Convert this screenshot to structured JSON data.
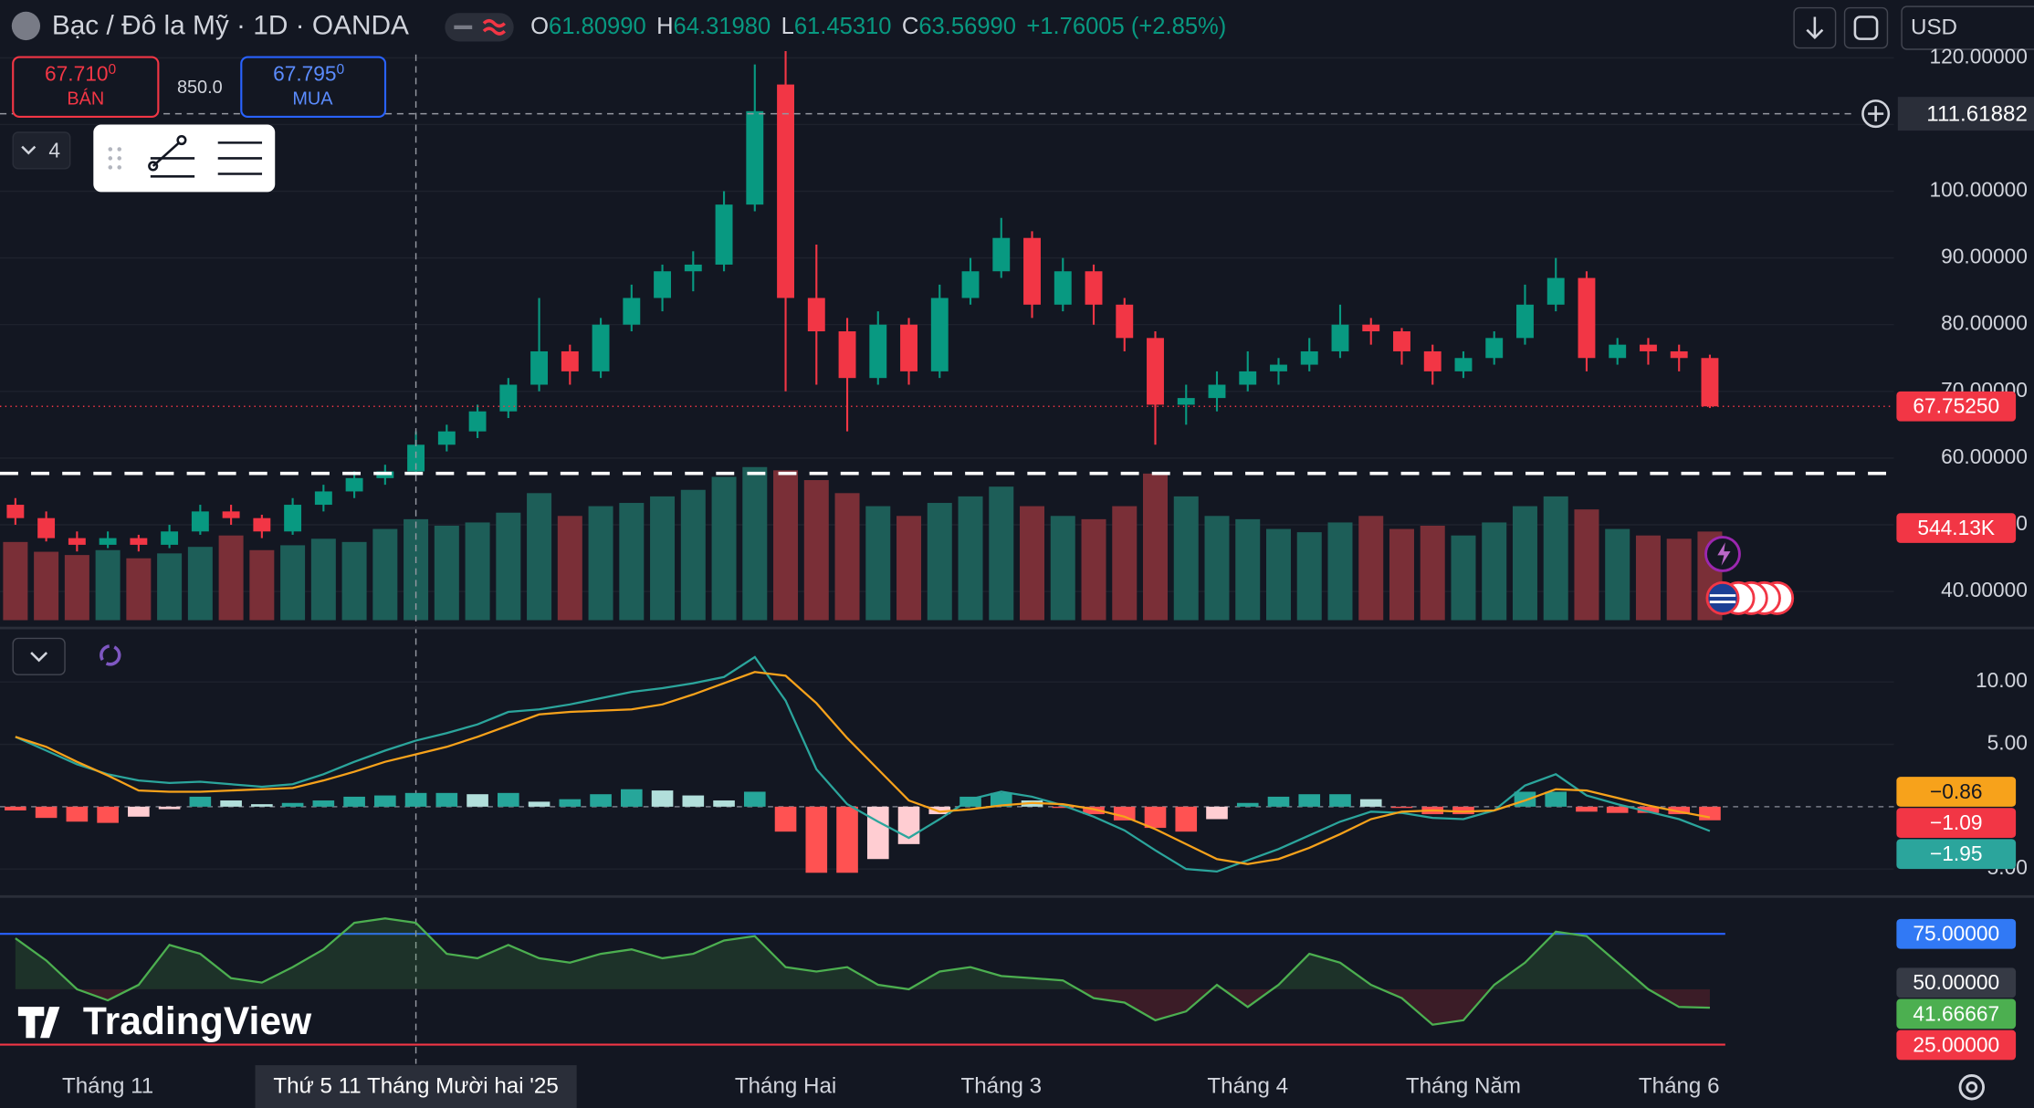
{
  "header": {
    "symbol": "Bạc / Đô la Mỹ · 1D · OANDA",
    "ohlc": [
      {
        "label": "O",
        "value": "61.80990"
      },
      {
        "label": "H",
        "value": "64.31980"
      },
      {
        "label": "L",
        "value": "61.45310"
      },
      {
        "label": "C",
        "value": "63.56990"
      }
    ],
    "change": "+1.76005 (+2.85%)"
  },
  "trade": {
    "sell": {
      "price": "67.710",
      "last_digit": "0",
      "label": "BÁN"
    },
    "spread": "850.0",
    "buy": {
      "price": "67.795",
      "last_digit": "0",
      "label": "MUA"
    }
  },
  "toolbar": {
    "layers": "4"
  },
  "currency": "USD",
  "watermark": "TradingView",
  "chart_data": [
    {
      "type": "candlestick",
      "up_color": "#089981",
      "down_color": "#f23645",
      "volume_up_color": "#1d5e58",
      "volume_down_color": "#7a2f37",
      "categories": [
        null,
        null,
        null,
        "Tháng 11",
        null,
        null,
        null,
        null,
        null,
        null,
        null,
        null,
        null,
        "Thứ 5 11 Tháng Mười hai '25",
        null,
        null,
        null,
        null,
        null,
        null,
        null,
        null,
        null,
        null,
        null,
        "Tháng Hai",
        null,
        null,
        null,
        null,
        null,
        null,
        "Tháng 3",
        null,
        null,
        null,
        null,
        null,
        null,
        null,
        "Tháng 4",
        null,
        null,
        null,
        null,
        null,
        null,
        "Tháng Năm",
        null,
        null,
        null,
        null,
        null,
        null,
        "Tháng 6",
        null
      ],
      "ohlc": [
        [
          53,
          54,
          50,
          51
        ],
        [
          51,
          52,
          47.5,
          48
        ],
        [
          48,
          49,
          46,
          47
        ],
        [
          47,
          49,
          46.5,
          48
        ],
        [
          48,
          48.5,
          46,
          47
        ],
        [
          47,
          50,
          46.5,
          49
        ],
        [
          49,
          53,
          48.5,
          52
        ],
        [
          52,
          53,
          50,
          51
        ],
        [
          51,
          51.5,
          48,
          49
        ],
        [
          49,
          54,
          48.5,
          53
        ],
        [
          53,
          56,
          52,
          55
        ],
        [
          55,
          58,
          54,
          57
        ],
        [
          57,
          59,
          56,
          58
        ],
        [
          58,
          64,
          57.5,
          62
        ],
        [
          62,
          65,
          61,
          64
        ],
        [
          64,
          68,
          63,
          67
        ],
        [
          67,
          72,
          66,
          71
        ],
        [
          71,
          84,
          70,
          76
        ],
        [
          76,
          77,
          71,
          73
        ],
        [
          73,
          81,
          72,
          80
        ],
        [
          80,
          86,
          79,
          84
        ],
        [
          84,
          89,
          82,
          88
        ],
        [
          88,
          91,
          85,
          89
        ],
        [
          89,
          100,
          88,
          98
        ],
        [
          98,
          119,
          97,
          112
        ],
        [
          116,
          121,
          70,
          84
        ],
        [
          84,
          92,
          71,
          79
        ],
        [
          79,
          81,
          64,
          72
        ],
        [
          72,
          82,
          71,
          80
        ],
        [
          80,
          81,
          71,
          73
        ],
        [
          73,
          86,
          72,
          84
        ],
        [
          84,
          90,
          83,
          88
        ],
        [
          88,
          96,
          87,
          93
        ],
        [
          93,
          94,
          81,
          83
        ],
        [
          83,
          90,
          82,
          88
        ],
        [
          88,
          89,
          80,
          83
        ],
        [
          83,
          84,
          76,
          78
        ],
        [
          78,
          79,
          62,
          68
        ],
        [
          68,
          71,
          65,
          69
        ],
        [
          69,
          73,
          67,
          71
        ],
        [
          71,
          76,
          70,
          73
        ],
        [
          73,
          75,
          71,
          74
        ],
        [
          74,
          78,
          73,
          76
        ],
        [
          76,
          83,
          75,
          80
        ],
        [
          80,
          81,
          77,
          79
        ],
        [
          79,
          79.5,
          74,
          76
        ],
        [
          76,
          77,
          71,
          73
        ],
        [
          73,
          76,
          72,
          75
        ],
        [
          75,
          79,
          74,
          78
        ],
        [
          78,
          86,
          77,
          83
        ],
        [
          83,
          90,
          82,
          87
        ],
        [
          87,
          88,
          73,
          75
        ],
        [
          75,
          78,
          74,
          77
        ],
        [
          77,
          78,
          74,
          76
        ],
        [
          76,
          77,
          73,
          75
        ],
        [
          75,
          75.5,
          67.5,
          67.7525
        ]
      ],
      "volume": [
        480,
        420,
        400,
        430,
        380,
        410,
        450,
        520,
        430,
        460,
        500,
        480,
        560,
        620,
        580,
        600,
        660,
        780,
        640,
        700,
        720,
        760,
        800,
        880,
        940,
        920,
        860,
        780,
        700,
        640,
        720,
        760,
        820,
        700,
        640,
        620,
        700,
        900,
        760,
        640,
        620,
        560,
        540,
        600,
        640,
        560,
        580,
        520,
        600,
        700,
        760,
        680,
        560,
        520,
        500,
        544.13
      ],
      "volume_last_label": "544.13K",
      "ylim": [
        35.7,
        120.5
      ],
      "yticks": [
        {
          "value": 40,
          "label": "40.00000"
        },
        {
          "value": 50,
          "label": "50.00000"
        },
        {
          "value": 60,
          "label": "60.00000"
        },
        {
          "value": 70,
          "label": "70.00000"
        },
        {
          "value": 80,
          "label": "80.00000"
        },
        {
          "value": 90,
          "label": "90.00000"
        },
        {
          "value": 100,
          "label": "100.00000"
        },
        {
          "value": 110,
          "label": "110.00000"
        },
        {
          "value": 120,
          "label": "120.00000"
        }
      ],
      "grid": true,
      "current_price": {
        "value": 67.7525,
        "label": "67.75250"
      },
      "hline": 57.7,
      "crosshair": {
        "x": 13,
        "y": {
          "value": 111.61882,
          "label": "111.61882"
        }
      }
    },
    {
      "type": "line",
      "ylim": [
        -7.1,
        13.5
      ],
      "yticks": [
        {
          "value": -5,
          "label": "−5.00"
        },
        {
          "value": 5,
          "label": "5.00"
        },
        {
          "value": 10,
          "label": "10.00"
        }
      ],
      "zero_line": true,
      "series": [
        {
          "color": "#2ba59c",
          "values": [
            5.6,
            4.5,
            3.4,
            2.6,
            2.1,
            1.9,
            2.0,
            1.8,
            1.6,
            1.8,
            2.6,
            3.6,
            4.5,
            5.3,
            5.9,
            6.6,
            7.6,
            7.8,
            8.2,
            8.7,
            9.2,
            9.5,
            9.9,
            10.4,
            12.0,
            8.5,
            3.0,
            0.2,
            -1.2,
            -2.5,
            -1.0,
            0.6,
            1.2,
            0.8,
            0.1,
            -0.8,
            -1.9,
            -3.5,
            -5.0,
            -5.2,
            -4.3,
            -3.4,
            -2.3,
            -1.2,
            -0.4,
            -0.5,
            -0.9,
            -1.0,
            -0.3,
            1.7,
            2.6,
            0.9,
            0.2,
            -0.4,
            -1.0,
            -1.95
          ],
          "last_label": "−1.95",
          "label_color": "#2ba59c"
        },
        {
          "color": "#f7a21b",
          "values": [
            5.6,
            4.8,
            3.6,
            2.5,
            1.3,
            1.2,
            1.2,
            1.3,
            1.4,
            1.5,
            2.1,
            2.8,
            3.6,
            4.2,
            4.8,
            5.6,
            6.5,
            7.4,
            7.6,
            7.7,
            7.8,
            8.2,
            9.0,
            9.9,
            10.8,
            10.5,
            8.3,
            5.5,
            3.0,
            0.5,
            -0.4,
            -0.2,
            0.1,
            0.3,
            0.2,
            -0.2,
            -0.8,
            -1.8,
            -3.0,
            -4.2,
            -4.6,
            -4.2,
            -3.3,
            -2.2,
            -1.0,
            -0.4,
            -0.3,
            -0.4,
            -0.3,
            0.5,
            1.4,
            1.3,
            0.7,
            0.1,
            -0.4,
            -0.86
          ],
          "last_label": "−0.86",
          "label_color": "#f7a21b"
        }
      ],
      "histogram": {
        "up_color": "#26a69a",
        "up_fading_color": "#b2dfdb",
        "down_color": "#ff5252",
        "down_fading_color": "#ffcdd2",
        "values": [
          -0.3,
          -0.9,
          -1.2,
          -1.3,
          -0.8,
          -0.2,
          0.8,
          0.5,
          0.2,
          0.3,
          0.5,
          0.8,
          0.9,
          1.1,
          1.1,
          1.0,
          1.1,
          0.4,
          0.6,
          1.0,
          1.4,
          1.3,
          0.9,
          0.5,
          1.2,
          -2.0,
          -5.3,
          -5.3,
          -4.2,
          -3.0,
          -0.6,
          0.8,
          1.1,
          0.5,
          -0.1,
          -0.6,
          -1.1,
          -1.7,
          -2.0,
          -1.0,
          0.3,
          0.8,
          1.0,
          1.0,
          0.6,
          -0.1,
          -0.6,
          -0.6,
          0,
          1.2,
          1.2,
          -0.4,
          -0.5,
          -0.5,
          -0.6,
          -1.09
        ],
        "last_label": "−1.09",
        "label_color": "#f23645"
      }
    },
    {
      "type": "line",
      "ylim": [
        16.3,
        90.7
      ],
      "yticks": [
        {
          "value": 25,
          "label": "25.00000"
        },
        {
          "value": 50,
          "label": "50.00000"
        },
        {
          "value": 75,
          "label": "75.00000"
        }
      ],
      "ytick_colors": [
        "#f23645",
        "#363a45",
        "#3179f5"
      ],
      "bands": [
        {
          "value": 75,
          "color": "#2962ff"
        },
        {
          "value": 25,
          "color": "#f23645"
        }
      ],
      "fill_baseline": 50,
      "fill_up_color": "rgba(76,175,80,0.18)",
      "fill_down_color": "rgba(242,54,69,0.18)",
      "series": [
        {
          "color": "#4caf50",
          "values": [
            73,
            63,
            50,
            45,
            52,
            70,
            66,
            55,
            53,
            60,
            68,
            80,
            82,
            80,
            66,
            64,
            70,
            64,
            62,
            66,
            68,
            64,
            66,
            72,
            74,
            60,
            58,
            60,
            52,
            50,
            58,
            60,
            56,
            55,
            54,
            46,
            44,
            36,
            40,
            52,
            42,
            52,
            66,
            62,
            52,
            46,
            34,
            36,
            52,
            62,
            76,
            74,
            62,
            50,
            42,
            41.66667
          ],
          "last_label": "41.66667",
          "label_color": "#4caf50"
        }
      ]
    }
  ]
}
